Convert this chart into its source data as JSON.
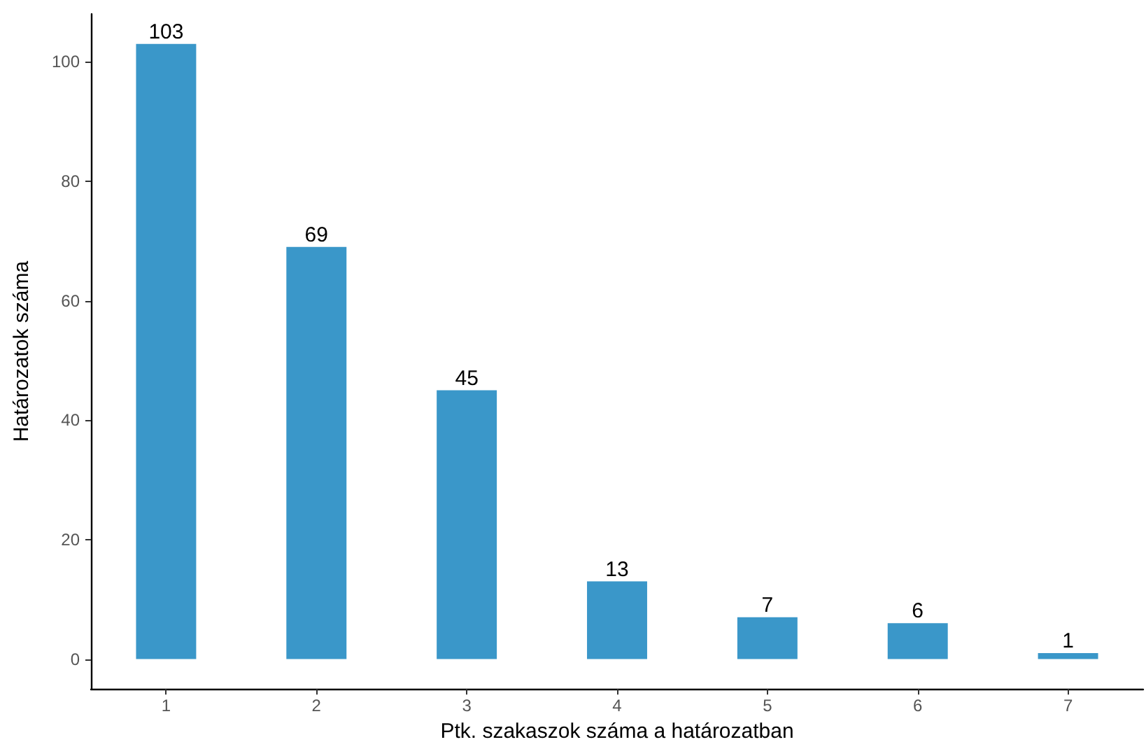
{
  "chart_data": {
    "type": "bar",
    "xlabel": "Ptk. szakaszok száma a határozatban",
    "ylabel": "Határozatok száma",
    "categories": [
      "1",
      "2",
      "3",
      "4",
      "5",
      "6",
      "7"
    ],
    "values": [
      103,
      69,
      45,
      13,
      7,
      6,
      1
    ],
    "color": "#3a97c9",
    "ylim": [
      -5,
      108
    ],
    "yticks": [
      0,
      20,
      40,
      60,
      80,
      100
    ],
    "data_labels": true,
    "grid": false
  }
}
